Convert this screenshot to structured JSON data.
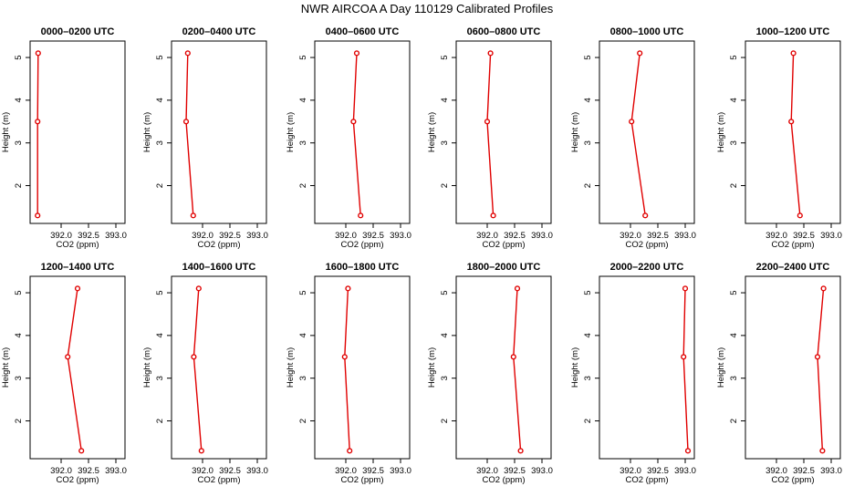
{
  "title": "NWR AIRCOA A  Day 110129  Calibrated Profiles",
  "colors": {
    "series": "#e00000",
    "axis": "#000000",
    "background": "#ffffff"
  },
  "chart_data": [
    {
      "type": "line",
      "title": "0000–0200 UTC",
      "xlabel": "CO2 (ppm)",
      "ylabel": "Height (m)",
      "xlim": [
        391.5,
        393.1
      ],
      "ylim": [
        1.2,
        5.3
      ],
      "xticks": [
        "392.0",
        "392.5",
        "393.0"
      ],
      "yticks": [
        "2",
        "3",
        "4",
        "5"
      ],
      "points": [
        {
          "x": 391.57,
          "y": 1.3
        },
        {
          "x": 391.57,
          "y": 3.5
        },
        {
          "x": 391.58,
          "y": 5.1
        }
      ]
    },
    {
      "type": "line",
      "title": "0200–0400 UTC",
      "xlabel": "CO2 (ppm)",
      "ylabel": "Height (m)",
      "xlim": [
        391.5,
        393.1
      ],
      "ylim": [
        1.2,
        5.3
      ],
      "xticks": [
        "392.0",
        "392.5",
        "393.0"
      ],
      "yticks": [
        "2",
        "3",
        "4",
        "5"
      ],
      "points": [
        {
          "x": 391.83,
          "y": 1.3
        },
        {
          "x": 391.7,
          "y": 3.5
        },
        {
          "x": 391.73,
          "y": 5.1
        }
      ]
    },
    {
      "type": "line",
      "title": "0400–0600 UTC",
      "xlabel": "CO2 (ppm)",
      "ylabel": "Height (m)",
      "xlim": [
        391.5,
        393.1
      ],
      "ylim": [
        1.2,
        5.3
      ],
      "xticks": [
        "392.0",
        "392.5",
        "393.0"
      ],
      "yticks": [
        "2",
        "3",
        "4",
        "5"
      ],
      "points": [
        {
          "x": 392.27,
          "y": 1.3
        },
        {
          "x": 392.14,
          "y": 3.5
        },
        {
          "x": 392.2,
          "y": 5.1
        }
      ]
    },
    {
      "type": "line",
      "title": "0600–0800 UTC",
      "xlabel": "CO2 (ppm)",
      "ylabel": "Height (m)",
      "xlim": [
        391.5,
        393.1
      ],
      "ylim": [
        1.2,
        5.3
      ],
      "xticks": [
        "392.0",
        "392.5",
        "393.0"
      ],
      "yticks": [
        "2",
        "3",
        "4",
        "5"
      ],
      "points": [
        {
          "x": 392.11,
          "y": 1.3
        },
        {
          "x": 392.0,
          "y": 3.5
        },
        {
          "x": 392.06,
          "y": 5.1
        }
      ]
    },
    {
      "type": "line",
      "title": "0800–1000 UTC",
      "xlabel": "CO2 (ppm)",
      "ylabel": "Height (m)",
      "xlim": [
        391.5,
        393.1
      ],
      "ylim": [
        1.2,
        5.3
      ],
      "xticks": [
        "392.0",
        "392.5",
        "393.0"
      ],
      "yticks": [
        "2",
        "3",
        "4",
        "5"
      ],
      "points": [
        {
          "x": 392.27,
          "y": 1.3
        },
        {
          "x": 392.02,
          "y": 3.5
        },
        {
          "x": 392.17,
          "y": 5.1
        }
      ]
    },
    {
      "type": "line",
      "title": "1000–1200 UTC",
      "xlabel": "CO2 (ppm)",
      "ylabel": "Height (m)",
      "xlim": [
        391.5,
        393.1
      ],
      "ylim": [
        1.2,
        5.3
      ],
      "xticks": [
        "392.0",
        "392.5",
        "393.0"
      ],
      "yticks": [
        "2",
        "3",
        "4",
        "5"
      ],
      "points": [
        {
          "x": 392.43,
          "y": 1.3
        },
        {
          "x": 392.27,
          "y": 3.5
        },
        {
          "x": 392.31,
          "y": 5.1
        }
      ]
    },
    {
      "type": "line",
      "title": "1200–1400 UTC",
      "xlabel": "CO2 (ppm)",
      "ylabel": "Height (m)",
      "xlim": [
        391.5,
        393.1
      ],
      "ylim": [
        1.2,
        5.3
      ],
      "xticks": [
        "392.0",
        "392.5",
        "393.0"
      ],
      "yticks": [
        "2",
        "3",
        "4",
        "5"
      ],
      "points": [
        {
          "x": 392.37,
          "y": 1.3
        },
        {
          "x": 392.12,
          "y": 3.5
        },
        {
          "x": 392.3,
          "y": 5.1
        }
      ]
    },
    {
      "type": "line",
      "title": "1400–1600 UTC",
      "xlabel": "CO2 (ppm)",
      "ylabel": "Height (m)",
      "xlim": [
        391.5,
        393.1
      ],
      "ylim": [
        1.2,
        5.3
      ],
      "xticks": [
        "392.0",
        "392.5",
        "393.0"
      ],
      "yticks": [
        "2",
        "3",
        "4",
        "5"
      ],
      "points": [
        {
          "x": 391.98,
          "y": 1.3
        },
        {
          "x": 391.84,
          "y": 3.5
        },
        {
          "x": 391.93,
          "y": 5.1
        }
      ]
    },
    {
      "type": "line",
      "title": "1600–1800 UTC",
      "xlabel": "CO2 (ppm)",
      "ylabel": "Height (m)",
      "xlim": [
        391.5,
        393.1
      ],
      "ylim": [
        1.2,
        5.3
      ],
      "xticks": [
        "392.0",
        "392.5",
        "393.0"
      ],
      "yticks": [
        "2",
        "3",
        "4",
        "5"
      ],
      "points": [
        {
          "x": 392.07,
          "y": 1.3
        },
        {
          "x": 391.98,
          "y": 3.5
        },
        {
          "x": 392.04,
          "y": 5.1
        }
      ]
    },
    {
      "type": "line",
      "title": "1800–2000 UTC",
      "xlabel": "CO2 (ppm)",
      "ylabel": "Height (m)",
      "xlim": [
        391.5,
        393.1
      ],
      "ylim": [
        1.2,
        5.3
      ],
      "xticks": [
        "392.0",
        "392.5",
        "393.0"
      ],
      "yticks": [
        "2",
        "3",
        "4",
        "5"
      ],
      "points": [
        {
          "x": 392.61,
          "y": 1.3
        },
        {
          "x": 392.48,
          "y": 3.5
        },
        {
          "x": 392.55,
          "y": 5.1
        }
      ]
    },
    {
      "type": "line",
      "title": "2000–2200 UTC",
      "xlabel": "CO2 (ppm)",
      "ylabel": "Height (m)",
      "xlim": [
        391.5,
        393.1
      ],
      "ylim": [
        1.2,
        5.3
      ],
      "xticks": [
        "392.0",
        "392.5",
        "393.0"
      ],
      "yticks": [
        "2",
        "3",
        "4",
        "5"
      ],
      "points": [
        {
          "x": 393.05,
          "y": 1.3
        },
        {
          "x": 392.97,
          "y": 3.5
        },
        {
          "x": 393.0,
          "y": 5.1
        }
      ]
    },
    {
      "type": "line",
      "title": "2200–2400 UTC",
      "xlabel": "CO2 (ppm)",
      "ylabel": "Height (m)",
      "xlim": [
        391.5,
        393.1
      ],
      "ylim": [
        1.2,
        5.3
      ],
      "xticks": [
        "392.0",
        "392.5",
        "393.0"
      ],
      "yticks": [
        "2",
        "3",
        "4",
        "5"
      ],
      "points": [
        {
          "x": 392.84,
          "y": 1.3
        },
        {
          "x": 392.75,
          "y": 3.5
        },
        {
          "x": 392.86,
          "y": 5.1
        }
      ]
    }
  ]
}
